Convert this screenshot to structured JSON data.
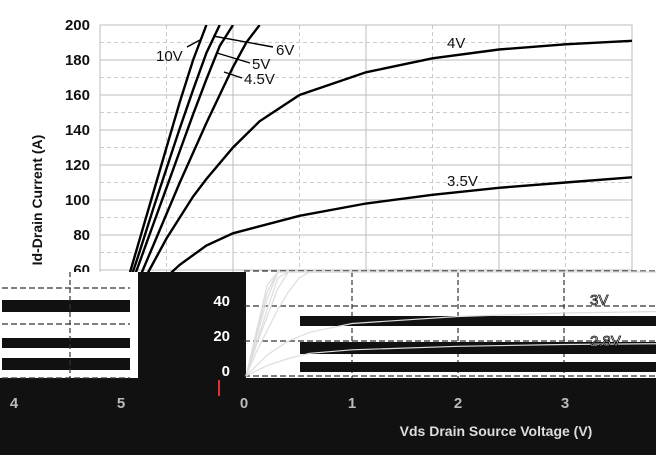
{
  "chart_data": {
    "type": "line",
    "xlabel": "Vds Drain Source Voltage (V)",
    "ylabel": "Id-Drain Current (A)",
    "ylim": [
      0,
      200
    ],
    "xlim": [
      0,
      4
    ],
    "y_ticks": [
      "0",
      "20",
      "40",
      "60",
      "80",
      "100",
      "120",
      "140",
      "160",
      "180",
      "200"
    ],
    "x_ticks": [
      "0",
      "1",
      "2",
      "3",
      "4",
      "5"
    ],
    "grid": true,
    "series": [
      {
        "name": "10V",
        "x": [
          0,
          0.1,
          0.2,
          0.3,
          0.4,
          0.5,
          0.6,
          0.7,
          0.8
        ],
        "y": [
          0,
          26,
          52,
          78,
          104,
          130,
          156,
          180,
          200
        ]
      },
      {
        "name": "6V",
        "x": [
          0,
          0.1,
          0.2,
          0.3,
          0.4,
          0.5,
          0.6,
          0.7,
          0.8,
          0.9
        ],
        "y": [
          0,
          24,
          48,
          71,
          95,
          118,
          141,
          163,
          184,
          200
        ]
      },
      {
        "name": "5V",
        "x": [
          0,
          0.1,
          0.2,
          0.3,
          0.4,
          0.5,
          0.6,
          0.7,
          0.8,
          0.9,
          1.0
        ],
        "y": [
          0,
          22,
          44,
          65,
          86,
          107,
          128,
          149,
          169,
          188,
          200
        ]
      },
      {
        "name": "4.5V",
        "x": [
          0,
          0.1,
          0.2,
          0.3,
          0.4,
          0.5,
          0.6,
          0.7,
          0.8,
          0.9,
          1.0,
          1.1,
          1.2
        ],
        "y": [
          0,
          19,
          38,
          56,
          74,
          92,
          110,
          127,
          144,
          160,
          176,
          190,
          200
        ]
      },
      {
        "name": "4V",
        "x": [
          0,
          0.1,
          0.2,
          0.3,
          0.4,
          0.5,
          0.6,
          0.7,
          0.8,
          1.0,
          1.2,
          1.5,
          2.0,
          2.5,
          3.0,
          3.5,
          4.0
        ],
        "y": [
          0,
          18,
          34,
          50,
          64,
          78,
          90,
          102,
          112,
          130,
          145,
          160,
          173,
          181,
          186,
          189,
          191
        ]
      },
      {
        "name": "3.5V",
        "x": [
          0,
          0.1,
          0.2,
          0.3,
          0.4,
          0.5,
          0.6,
          0.8,
          1.0,
          1.5,
          2.0,
          2.5,
          3.0,
          3.5,
          4.0
        ],
        "y": [
          0,
          14,
          26,
          38,
          48,
          56,
          63,
          74,
          81,
          91,
          98,
          103,
          107,
          110,
          113
        ]
      },
      {
        "name": "3V",
        "x": [
          0,
          0.2,
          0.4,
          0.6,
          1.0,
          2.0,
          3.0,
          4.0
        ],
        "y": [
          0,
          12,
          20,
          25,
          30,
          34,
          36,
          37
        ]
      },
      {
        "name": "2.8V",
        "x": [
          0,
          0.2,
          0.4,
          0.6,
          1.0,
          2.0,
          3.0,
          4.0
        ],
        "y": [
          0,
          6,
          10,
          13,
          15,
          17,
          18,
          18.5
        ]
      }
    ],
    "labels": [
      {
        "text": "10V"
      },
      {
        "text": "6V"
      },
      {
        "text": "5V"
      },
      {
        "text": "4.5V"
      },
      {
        "text": "4V"
      },
      {
        "text": "3.5V"
      },
      {
        "text": "3V"
      },
      {
        "text": "2.8V"
      }
    ]
  },
  "colors": {
    "curve": "#000000",
    "grid": "#bdbdbd",
    "grid_dashed": "#333333",
    "glitch_black": "#111111",
    "background": "#ffffff"
  }
}
